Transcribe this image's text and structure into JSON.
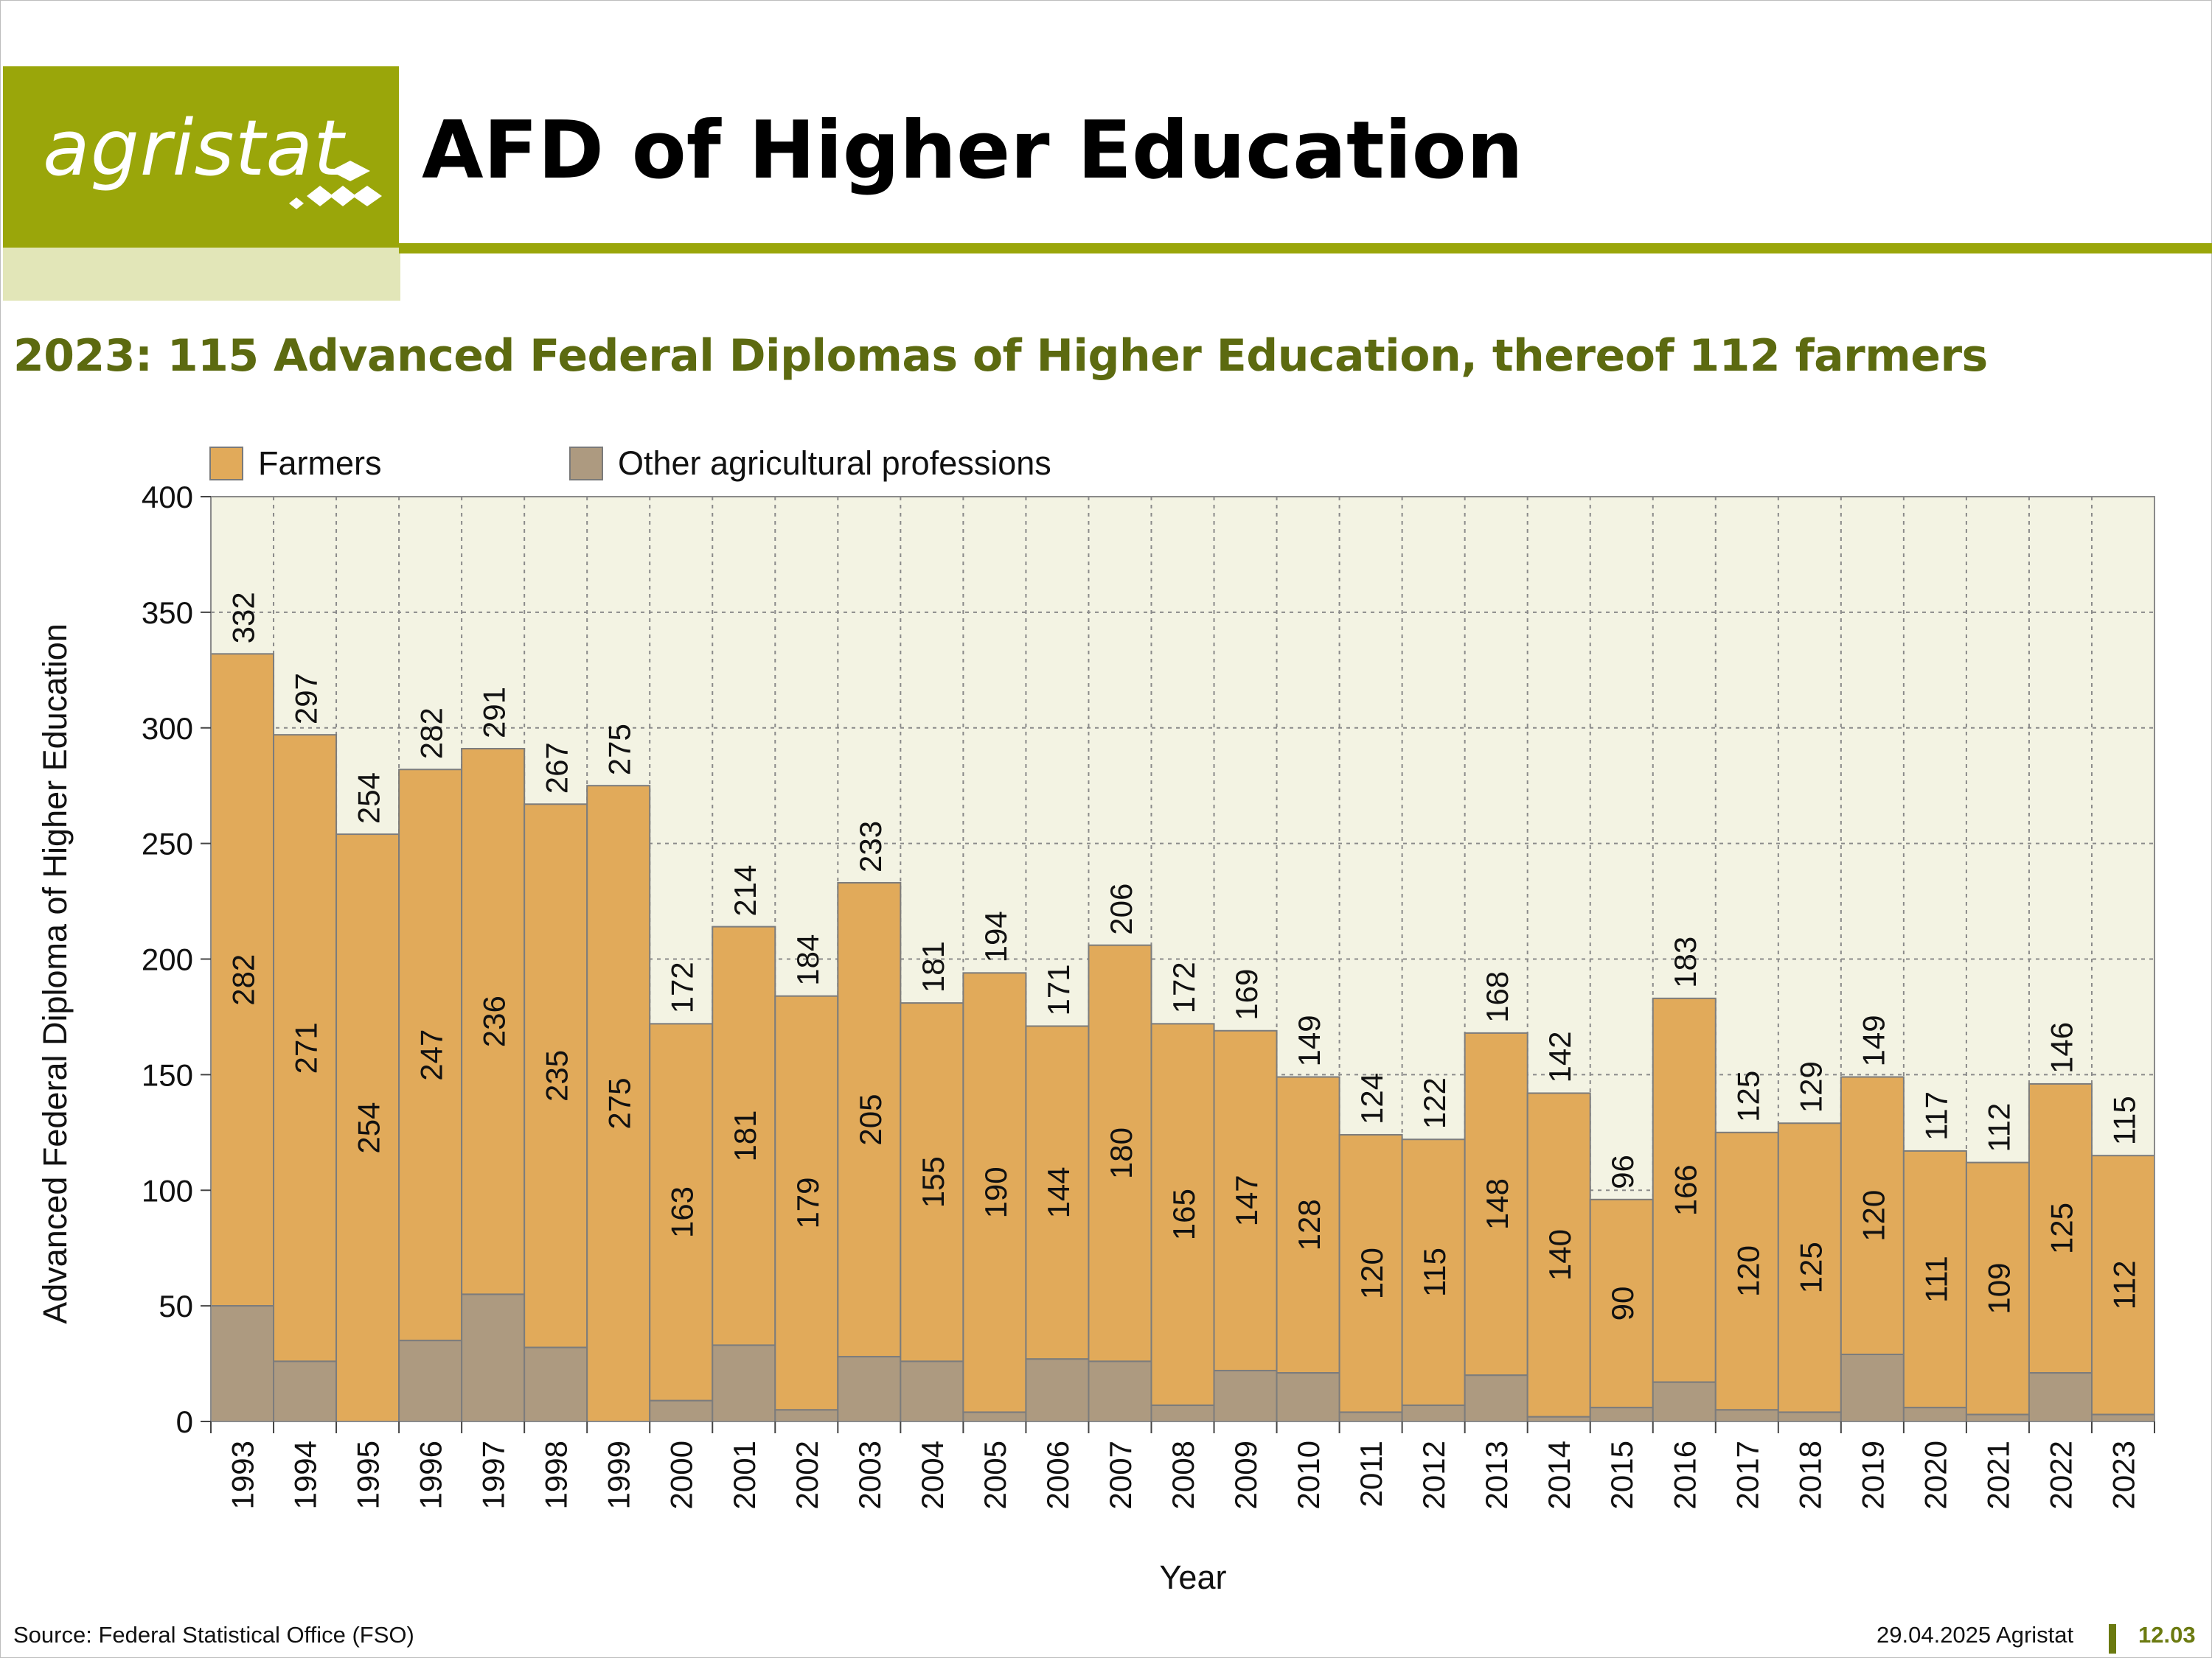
{
  "header": {
    "logo_text": "agristat",
    "title": "AFD of Higher Education",
    "subtitle": "2023: 115 Advanced Federal Diplomas of Higher Education, thereof 112 farmers"
  },
  "colors": {
    "brand": "#9aa60a",
    "farmers": "#e1aa5a",
    "other": "#ad9a80",
    "plot_bg": "#f3f3e3",
    "subtitle": "#5c6a10"
  },
  "legend": [
    {
      "label": "Farmers",
      "color": "#e1aa5a"
    },
    {
      "label": "Other agricultural professions",
      "color": "#ad9a80"
    }
  ],
  "chart_data": {
    "type": "bar",
    "stacked": true,
    "title": "",
    "xlabel": "Year",
    "ylabel": "Advanced Federal Diploma of Higher Education",
    "ylim": [
      0,
      400
    ],
    "yticks": [
      0,
      50,
      100,
      150,
      200,
      250,
      300,
      350,
      400
    ],
    "grid": true,
    "legend_position": "top-left",
    "categories": [
      "1993",
      "1994",
      "1995",
      "1996",
      "1997",
      "1998",
      "1999",
      "2000",
      "2001",
      "2002",
      "2003",
      "2004",
      "2005",
      "2006",
      "2007",
      "2008",
      "2009",
      "2010",
      "2011",
      "2012",
      "2013",
      "2014",
      "2015",
      "2016",
      "2017",
      "2018",
      "2019",
      "2020",
      "2021",
      "2022",
      "2023"
    ],
    "series": [
      {
        "name": "Other agricultural professions",
        "values": [
          50,
          26,
          0,
          35,
          55,
          32,
          0,
          9,
          33,
          5,
          28,
          26,
          4,
          27,
          26,
          7,
          22,
          21,
          4,
          7,
          20,
          2,
          6,
          17,
          5,
          4,
          29,
          6,
          3,
          21,
          3
        ]
      },
      {
        "name": "Farmers",
        "values": [
          282,
          271,
          254,
          247,
          236,
          235,
          275,
          163,
          181,
          179,
          205,
          155,
          190,
          144,
          180,
          165,
          147,
          128,
          120,
          115,
          148,
          140,
          90,
          166,
          120,
          125,
          120,
          111,
          109,
          125,
          112
        ]
      }
    ],
    "totals": [
      332,
      297,
      254,
      282,
      291,
      267,
      275,
      172,
      214,
      184,
      233,
      181,
      194,
      171,
      206,
      172,
      169,
      149,
      124,
      122,
      168,
      142,
      96,
      183,
      125,
      129,
      149,
      117,
      112,
      146,
      115
    ]
  },
  "footer": {
    "source": "Source: Federal Statistical Office (FSO)",
    "date": "29.04.2025 Agristat",
    "page": "12.03"
  }
}
